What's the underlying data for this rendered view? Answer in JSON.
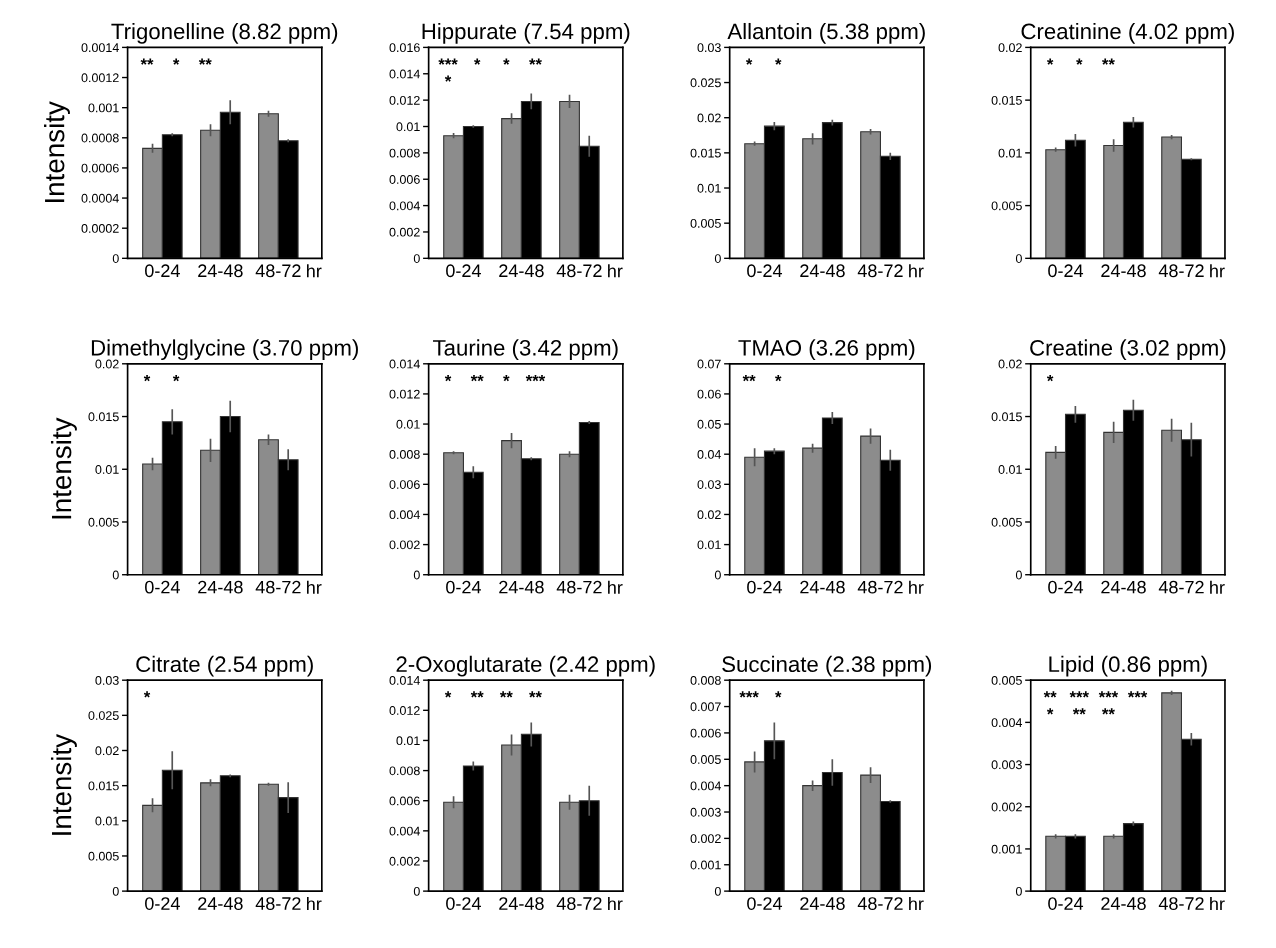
{
  "chart_data": [
    {
      "type": "bar",
      "title": "Trigonelline (8.82 ppm)",
      "ylabel": "Intensity",
      "xlabel": "hr",
      "categories": [
        "0-24",
        "24-48",
        "48-72"
      ],
      "ylim": [
        0,
        0.0014
      ],
      "yticks": [
        0,
        0.0002,
        0.0004,
        0.0006,
        0.0008,
        0.001,
        0.0012,
        0.0014
      ],
      "series": [
        {
          "color": "#8c8c8c",
          "values": [
            0.00073,
            0.00085,
            0.00096
          ],
          "errors": [
            3e-05,
            4e-05,
            2e-05
          ]
        },
        {
          "color": "#000000",
          "values": [
            0.00082,
            0.00097,
            0.00078
          ],
          "errors": [
            1e-05,
            8e-05,
            1e-05
          ]
        }
      ],
      "annotations": [
        "**",
        "*",
        "**"
      ]
    },
    {
      "type": "bar",
      "title": "Hippurate (7.54 ppm)",
      "xlabel": "hr",
      "categories": [
        "0-24",
        "24-48",
        "48-72"
      ],
      "ylim": [
        0,
        0.016
      ],
      "yticks": [
        0,
        0.002,
        0.004,
        0.006,
        0.008,
        0.01,
        0.012,
        0.014,
        0.016
      ],
      "series": [
        {
          "color": "#8c8c8c",
          "values": [
            0.0093,
            0.0106,
            0.0119
          ],
          "errors": [
            0.0002,
            0.0004,
            0.0005
          ]
        },
        {
          "color": "#000000",
          "values": [
            0.01,
            0.0119,
            0.0085
          ],
          "errors": [
            0.0001,
            0.0006,
            0.0008
          ]
        }
      ],
      "annotations": [
        "***",
        "*",
        "*",
        "**",
        "*"
      ]
    },
    {
      "type": "bar",
      "title": "Allantoin (5.38 ppm)",
      "xlabel": "hr",
      "categories": [
        "0-24",
        "24-48",
        "48-72"
      ],
      "ylim": [
        0,
        0.03
      ],
      "yticks": [
        0,
        0.005,
        0.01,
        0.015,
        0.02,
        0.025,
        0.03
      ],
      "series": [
        {
          "color": "#8c8c8c",
          "values": [
            0.0163,
            0.017,
            0.018
          ],
          "errors": [
            0.0003,
            0.0008,
            0.0004
          ]
        },
        {
          "color": "#000000",
          "values": [
            0.0188,
            0.0193,
            0.0145
          ],
          "errors": [
            0.0006,
            0.0004,
            0.0005
          ]
        }
      ],
      "annotations": [
        "*",
        "*"
      ]
    },
    {
      "type": "bar",
      "title": "Creatinine (4.02 ppm)",
      "xlabel": "hr",
      "categories": [
        "0-24",
        "24-48",
        "48-72"
      ],
      "ylim": [
        0,
        0.02
      ],
      "yticks": [
        0,
        0.005,
        0.01,
        0.015,
        0.02
      ],
      "series": [
        {
          "color": "#8c8c8c",
          "values": [
            0.0103,
            0.0107,
            0.0115
          ],
          "errors": [
            0.0002,
            0.0006,
            0.0002
          ]
        },
        {
          "color": "#000000",
          "values": [
            0.0112,
            0.0129,
            0.0094
          ],
          "errors": [
            0.0006,
            0.0005,
            0.0001
          ]
        }
      ],
      "annotations": [
        "*",
        "*",
        "**"
      ]
    },
    {
      "type": "bar",
      "title": "Dimethylglycine (3.70 ppm)",
      "ylabel": "Intensity",
      "xlabel": "hr",
      "categories": [
        "0-24",
        "24-48",
        "48-72"
      ],
      "ylim": [
        0,
        0.02
      ],
      "yticks": [
        0,
        0.005,
        0.01,
        0.015,
        0.02
      ],
      "series": [
        {
          "color": "#8c8c8c",
          "values": [
            0.0105,
            0.0118,
            0.0128
          ],
          "errors": [
            0.0006,
            0.0011,
            0.0005
          ]
        },
        {
          "color": "#000000",
          "values": [
            0.0145,
            0.015,
            0.0109
          ],
          "errors": [
            0.0012,
            0.0015,
            0.001
          ]
        }
      ],
      "annotations": [
        "*",
        "*"
      ]
    },
    {
      "type": "bar",
      "title": "Taurine (3.42 ppm)",
      "xlabel": "hr",
      "categories": [
        "0-24",
        "24-48",
        "48-72"
      ],
      "ylim": [
        0,
        0.014
      ],
      "yticks": [
        0,
        0.002,
        0.004,
        0.006,
        0.008,
        0.01,
        0.012,
        0.014
      ],
      "series": [
        {
          "color": "#8c8c8c",
          "values": [
            0.0081,
            0.0089,
            0.008
          ],
          "errors": [
            0.0001,
            0.0005,
            0.0002
          ]
        },
        {
          "color": "#000000",
          "values": [
            0.0068,
            0.0077,
            0.0101
          ],
          "errors": [
            0.0004,
            0.0001,
            0.0001
          ]
        }
      ],
      "annotations": [
        "*",
        "**",
        "*",
        "***"
      ]
    },
    {
      "type": "bar",
      "title": "TMAO (3.26 ppm)",
      "xlabel": "hr",
      "categories": [
        "0-24",
        "24-48",
        "48-72"
      ],
      "ylim": [
        0,
        0.07
      ],
      "yticks": [
        0,
        0.01,
        0.02,
        0.03,
        0.04,
        0.05,
        0.06,
        0.07
      ],
      "series": [
        {
          "color": "#8c8c8c",
          "values": [
            0.039,
            0.042,
            0.046
          ],
          "errors": [
            0.003,
            0.0015,
            0.0025
          ]
        },
        {
          "color": "#000000",
          "values": [
            0.041,
            0.052,
            0.038
          ],
          "errors": [
            0.001,
            0.002,
            0.0035
          ]
        }
      ],
      "annotations": [
        "**",
        "*"
      ]
    },
    {
      "type": "bar",
      "title": "Creatine (3.02 ppm)",
      "xlabel": "hr",
      "categories": [
        "0-24",
        "24-48",
        "48-72"
      ],
      "ylim": [
        0,
        0.02
      ],
      "yticks": [
        0,
        0.005,
        0.01,
        0.015,
        0.02
      ],
      "series": [
        {
          "color": "#8c8c8c",
          "values": [
            0.0116,
            0.0135,
            0.0137
          ],
          "errors": [
            0.0006,
            0.001,
            0.0011
          ]
        },
        {
          "color": "#000000",
          "values": [
            0.0152,
            0.0156,
            0.0128
          ],
          "errors": [
            0.0008,
            0.001,
            0.0016
          ]
        }
      ],
      "annotations": [
        "*"
      ]
    },
    {
      "type": "bar",
      "title": "Citrate (2.54 ppm)",
      "ylabel": "Intensity",
      "xlabel": "hr",
      "categories": [
        "0-24",
        "24-48",
        "48-72"
      ],
      "ylim": [
        0,
        0.03
      ],
      "yticks": [
        0,
        0.005,
        0.01,
        0.015,
        0.02,
        0.025,
        0.03
      ],
      "series": [
        {
          "color": "#8c8c8c",
          "values": [
            0.0122,
            0.0154,
            0.0152
          ],
          "errors": [
            0.001,
            0.0005,
            0.0002
          ]
        },
        {
          "color": "#000000",
          "values": [
            0.0172,
            0.0164,
            0.0133
          ],
          "errors": [
            0.0027,
            0.0002,
            0.0022
          ]
        }
      ],
      "annotations": [
        "*"
      ]
    },
    {
      "type": "bar",
      "title": "2-Oxoglutarate (2.42 ppm)",
      "xlabel": "hr",
      "categories": [
        "0-24",
        "24-48",
        "48-72"
      ],
      "ylim": [
        0,
        0.014
      ],
      "yticks": [
        0,
        0.002,
        0.004,
        0.006,
        0.008,
        0.01,
        0.012,
        0.014
      ],
      "series": [
        {
          "color": "#8c8c8c",
          "values": [
            0.0059,
            0.0097,
            0.0059
          ],
          "errors": [
            0.0004,
            0.0007,
            0.0005
          ]
        },
        {
          "color": "#000000",
          "values": [
            0.0083,
            0.0104,
            0.006
          ],
          "errors": [
            0.0003,
            0.0008,
            0.001
          ]
        }
      ],
      "annotations": [
        "*",
        "**",
        "**",
        "**"
      ]
    },
    {
      "type": "bar",
      "title": "Succinate (2.38 ppm)",
      "xlabel": "hr",
      "categories": [
        "0-24",
        "24-48",
        "48-72"
      ],
      "ylim": [
        0,
        0.008
      ],
      "yticks": [
        0,
        0.001,
        0.002,
        0.003,
        0.004,
        0.005,
        0.006,
        0.007,
        0.008
      ],
      "series": [
        {
          "color": "#8c8c8c",
          "values": [
            0.0049,
            0.004,
            0.0044
          ],
          "errors": [
            0.0004,
            0.0002,
            0.0003
          ]
        },
        {
          "color": "#000000",
          "values": [
            0.0057,
            0.0045,
            0.0034
          ],
          "errors": [
            0.0007,
            0.0005,
            5e-05
          ]
        }
      ],
      "annotations": [
        "***",
        "*"
      ]
    },
    {
      "type": "bar",
      "title": "Lipid (0.86 ppm)",
      "xlabel": "hr",
      "categories": [
        "0-24",
        "24-48",
        "48-72"
      ],
      "ylim": [
        0,
        0.005
      ],
      "yticks": [
        0,
        0.001,
        0.002,
        0.003,
        0.004,
        0.005
      ],
      "series": [
        {
          "color": "#8c8c8c",
          "values": [
            0.0013,
            0.0013,
            0.0047
          ],
          "errors": [
            5e-05,
            5e-05,
            5e-05
          ]
        },
        {
          "color": "#000000",
          "values": [
            0.0013,
            0.0016,
            0.0036
          ],
          "errors": [
            5e-05,
            5e-05,
            0.00015
          ]
        }
      ],
      "annotations": [
        "**",
        "***",
        "***",
        "***",
        "*",
        "**",
        "**"
      ]
    }
  ]
}
